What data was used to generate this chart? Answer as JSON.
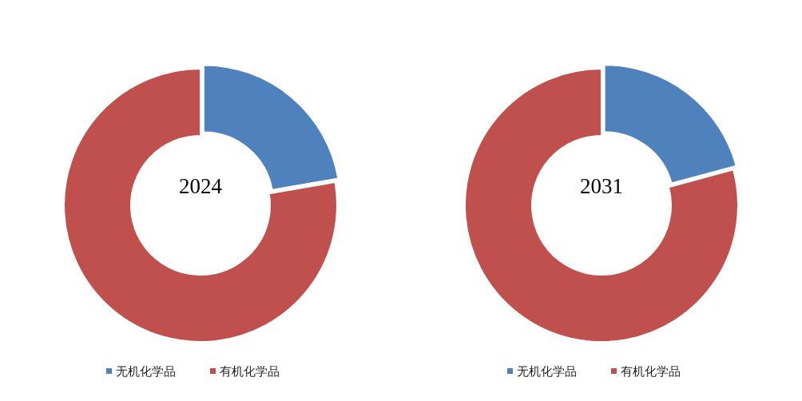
{
  "chart_data": [
    {
      "type": "donut",
      "title": "2024",
      "categories": [
        "无机化学品",
        "有机化学品"
      ],
      "values": [
        22.3,
        77.7
      ],
      "colors": [
        "#4f81bd",
        "#c0504d"
      ],
      "legend": "bottom"
    },
    {
      "type": "donut",
      "title": "2031",
      "categories": [
        "无机化学品",
        "有机化学品"
      ],
      "values": [
        20.8,
        79.2
      ],
      "colors": [
        "#4f81bd",
        "#c0504d"
      ],
      "legend": "bottom"
    }
  ]
}
